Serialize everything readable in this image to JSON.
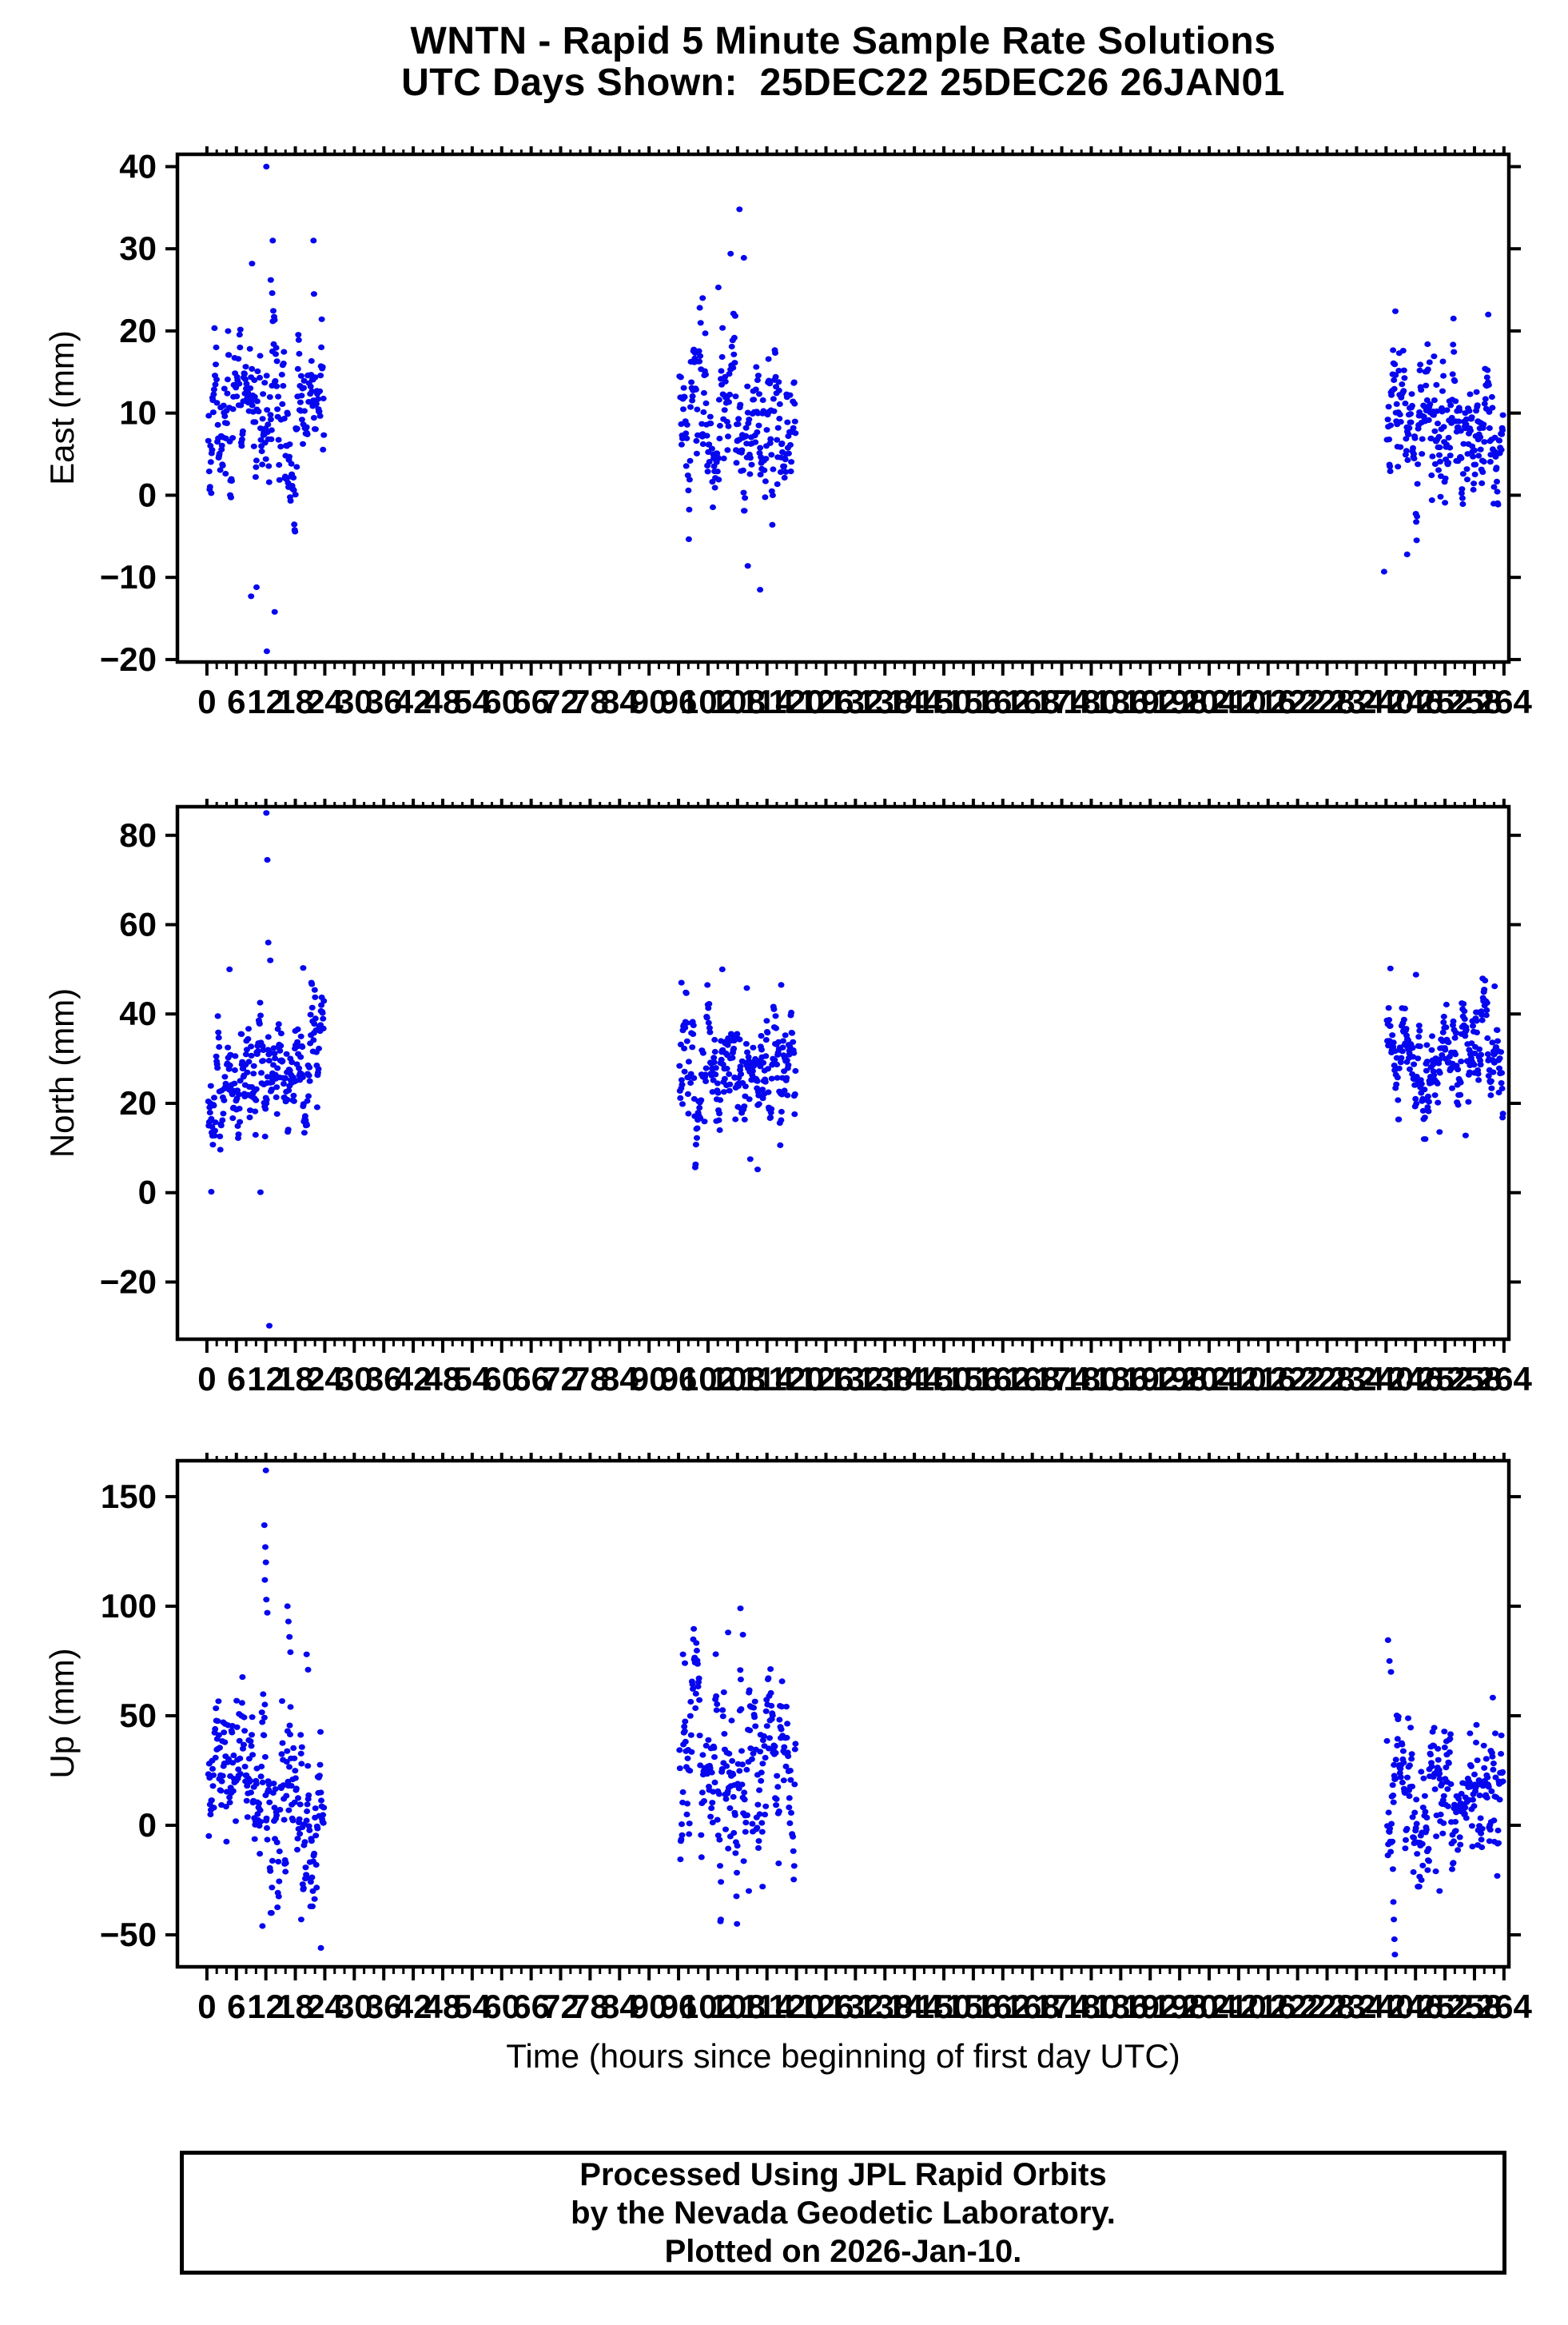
{
  "title": {
    "line1": "WNTN - Rapid 5 Minute Sample Rate Solutions",
    "line2": "UTC Days Shown:  25DEC22 25DEC26 26JAN01"
  },
  "xlabel": "Time (hours since beginning of first day UTC)",
  "footer": {
    "lines": [
      "Processed Using JPL Rapid Orbits",
      "by the Nevada Geodetic Laboratory.",
      "Plotted on 2026-Jan-10."
    ]
  },
  "style": {
    "dot_color": "#0606ef",
    "frame_color": "#000000",
    "text_color": "#000000",
    "background": "#ffffff"
  },
  "x_axis": {
    "xlim": [
      -6,
      265
    ],
    "annotated_tick_first": 0,
    "annotated_tick_last": 264,
    "annotated_tick_step": 6,
    "minor_tick_step": 2,
    "days_shown_hour_ranges": [
      [
        0,
        24
      ],
      [
        96,
        120
      ],
      [
        240,
        264
      ]
    ]
  },
  "chart_data": [
    {
      "id": "east",
      "type": "scatter",
      "ylabel": "East (mm)",
      "ylim": [
        -20.3,
        41.5
      ],
      "yticks": [
        -20,
        -10,
        0,
        10,
        20,
        30,
        40
      ],
      "clusters": [
        {
          "seed": 11,
          "hours": [
            0.3,
            23.8
          ],
          "n": 282,
          "mean": 10.0,
          "sd": 5.2,
          "trend": -3,
          "clip": [
            -13,
            27
          ],
          "dropout": 0.04
        },
        {
          "seed": 12,
          "hours": [
            96.2,
            119.8
          ],
          "n": 276,
          "mean": 9.3,
          "sd": 5.4,
          "trend": -4,
          "clip": [
            -11,
            26
          ],
          "dropout": 0.04
        },
        {
          "seed": 13,
          "hours": [
            240.2,
            263.8
          ],
          "n": 287,
          "mean": 8.6,
          "sd": 4.6,
          "trend": -1,
          "clip": [
            -9.5,
            22.5
          ],
          "dropout": 0.04
        }
      ],
      "outliers": [
        [
          12.1,
          40
        ],
        [
          13.4,
          31
        ],
        [
          21.7,
          31
        ],
        [
          9.2,
          28.2
        ],
        [
          13.0,
          26.2
        ],
        [
          13.3,
          24.6
        ],
        [
          21.8,
          24.5
        ],
        [
          10.1,
          -11.2
        ],
        [
          9.0,
          -12.3
        ],
        [
          13.8,
          -14.2
        ],
        [
          12.2,
          -19.0
        ],
        [
          108.4,
          34.8
        ],
        [
          106.6,
          29.4
        ],
        [
          109.3,
          28.9
        ],
        [
          104.1,
          25.3
        ],
        [
          100.9,
          24.0
        ],
        [
          112.6,
          -11.5
        ],
        [
          110.1,
          -8.6
        ],
        [
          241.9,
          22.4
        ],
        [
          260.8,
          22.0
        ],
        [
          239.6,
          -9.3
        ],
        [
          244.3,
          -7.2
        ]
      ]
    },
    {
      "id": "north",
      "type": "scatter",
      "ylabel": "North (mm)",
      "ylim": [
        -32.8,
        86.4
      ],
      "yticks": [
        -20,
        0,
        20,
        40,
        60,
        80
      ],
      "clusters": [
        {
          "seed": 21,
          "hours": [
            0.3,
            23.8
          ],
          "n": 280,
          "mean": 26.5,
          "sd": 7.5,
          "trend": 3,
          "clip": [
            2,
            47
          ],
          "dropout": 0.04
        },
        {
          "seed": 22,
          "hours": [
            96.2,
            119.8
          ],
          "n": 275,
          "mean": 28.0,
          "sd": 7.5,
          "trend": 0,
          "clip": [
            4,
            48
          ],
          "dropout": 0.04
        },
        {
          "seed": 23,
          "hours": [
            240.2,
            263.8
          ],
          "n": 286,
          "mean": 30.5,
          "sd": 6.5,
          "trend": 0,
          "clip": [
            12,
            49
          ],
          "dropout": 0.04
        }
      ],
      "outliers": [
        [
          12.1,
          85
        ],
        [
          12.3,
          74.5
        ],
        [
          12.5,
          56
        ],
        [
          12.9,
          52
        ],
        [
          4.6,
          50
        ],
        [
          19.6,
          50.3
        ],
        [
          0.9,
          0.2
        ],
        [
          10.9,
          0.1
        ],
        [
          12.7,
          -29.8
        ],
        [
          104.9,
          50
        ],
        [
          96.6,
          47
        ],
        [
          116.9,
          46.5
        ],
        [
          109.9,
          45.8
        ],
        [
          110.6,
          7.5
        ],
        [
          112.1,
          5.2
        ],
        [
          240.9,
          50.2
        ],
        [
          246.1,
          48.8
        ],
        [
          262.1,
          46.2
        ],
        [
          250.9,
          13.6
        ],
        [
          256.2,
          12.8
        ]
      ]
    },
    {
      "id": "up",
      "type": "scatter",
      "ylabel": "Up (mm)",
      "ylim": [
        -64.6,
        166.4
      ],
      "yticks": [
        -50,
        0,
        50,
        100,
        150
      ],
      "clusters": [
        {
          "seed": 31,
          "hours": [
            0.3,
            23.8
          ],
          "n": 275,
          "mean": 16,
          "sd": 21,
          "trend": -12,
          "clip": [
            -40,
            80
          ],
          "dropout": 0.05
        },
        {
          "seed": 32,
          "hours": [
            96.2,
            119.8
          ],
          "n": 270,
          "mean": 28,
          "sd": 24,
          "trend": -6,
          "clip": [
            -46,
            90
          ],
          "dropout": 0.05
        },
        {
          "seed": 33,
          "hours": [
            240.2,
            263.8
          ],
          "n": 286,
          "mean": 16,
          "sd": 20,
          "trend": 0,
          "start_offset": 30,
          "clip": [
            -28,
            62
          ],
          "dropout": 0.04
        }
      ],
      "outliers": [
        [
          12.0,
          162
        ],
        [
          11.7,
          137
        ],
        [
          11.9,
          127
        ],
        [
          12.0,
          120
        ],
        [
          11.8,
          112
        ],
        [
          12.1,
          103
        ],
        [
          12.3,
          97
        ],
        [
          16.4,
          100
        ],
        [
          16.6,
          93
        ],
        [
          16.8,
          86
        ],
        [
          17.0,
          79
        ],
        [
          20.3,
          78
        ],
        [
          20.6,
          71
        ],
        [
          11.3,
          -46
        ],
        [
          19.2,
          -43
        ],
        [
          21.1,
          -37
        ],
        [
          23.2,
          -56
        ],
        [
          108.6,
          99
        ],
        [
          106.1,
          88
        ],
        [
          109.1,
          87
        ],
        [
          96.9,
          78
        ],
        [
          97.3,
          74
        ],
        [
          104.6,
          -43
        ],
        [
          107.9,
          -45
        ],
        [
          110.3,
          -30
        ],
        [
          113.1,
          -28
        ],
        [
          240.4,
          84.5
        ],
        [
          240.7,
          75
        ],
        [
          241.0,
          70
        ],
        [
          241.4,
          -20
        ],
        [
          241.5,
          -35
        ],
        [
          241.6,
          -43
        ],
        [
          241.7,
          -52
        ],
        [
          241.8,
          -59
        ],
        [
          250.9,
          -30
        ],
        [
          247.2,
          -25
        ]
      ]
    }
  ]
}
